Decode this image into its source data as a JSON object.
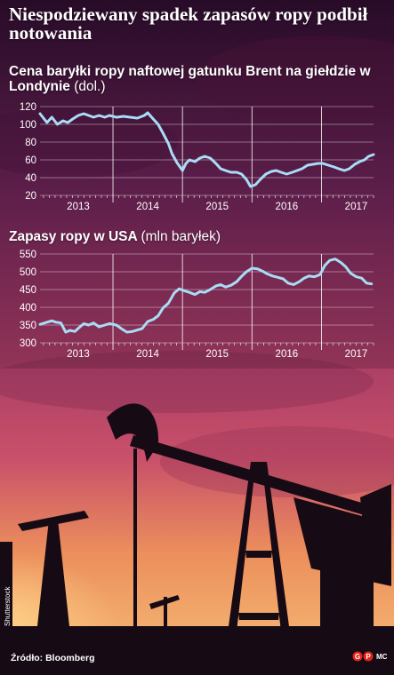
{
  "title": "Niespodziewany spadek zapasów ropy podbił notowania",
  "source": "Źródło: Bloomberg",
  "photo_credit": "Shutterstock",
  "author_initials": "MC",
  "colors": {
    "line": "#a9dcf5",
    "grid": "#ffffff",
    "sky_top": "#3b1236",
    "sky_bottom": "#f39a5a"
  },
  "chart_data": [
    {
      "type": "line",
      "title": "Cena baryłki ropy naftowej gatunku Brent na giełdzie w Londynie",
      "unit": "(dol.)",
      "x_labels": [
        "2013",
        "2014",
        "2015",
        "2016",
        "2017"
      ],
      "xlim": [
        2012.95,
        2017.75
      ],
      "ylim": [
        20,
        120
      ],
      "y_ticks": [
        120,
        100,
        80,
        60,
        40,
        20
      ],
      "grid": true,
      "series": [
        {
          "x": [
            2012.95,
            2013.05,
            2013.12,
            2013.2,
            2013.28,
            2013.35,
            2013.42,
            2013.5,
            2013.58,
            2013.65,
            2013.72,
            2013.8,
            2013.88,
            2013.95,
            2014.05,
            2014.15,
            2014.25,
            2014.35,
            2014.45,
            2014.5,
            2014.58,
            2014.65,
            2014.72,
            2014.8,
            2014.85,
            2014.92,
            2015.0,
            2015.05,
            2015.1,
            2015.18,
            2015.25,
            2015.32,
            2015.4,
            2015.48,
            2015.55,
            2015.62,
            2015.7,
            2015.78,
            2015.85,
            2015.92,
            2015.98,
            2016.05,
            2016.12,
            2016.2,
            2016.28,
            2016.35,
            2016.42,
            2016.5,
            2016.58,
            2016.65,
            2016.72,
            2016.8,
            2016.88,
            2016.95,
            2017.02,
            2017.1,
            2017.18,
            2017.25,
            2017.33,
            2017.4,
            2017.48,
            2017.55,
            2017.62,
            2017.68,
            2017.75
          ],
          "y": [
            112,
            102,
            108,
            100,
            104,
            102,
            106,
            110,
            112,
            110,
            108,
            110,
            108,
            110,
            108,
            109,
            108,
            107,
            110,
            113,
            106,
            100,
            90,
            78,
            67,
            57,
            48,
            56,
            60,
            58,
            62,
            64,
            62,
            56,
            50,
            48,
            46,
            46,
            44,
            38,
            30,
            32,
            38,
            44,
            47,
            48,
            46,
            44,
            46,
            48,
            50,
            54,
            55,
            56,
            56,
            54,
            52,
            50,
            48,
            50,
            55,
            58,
            60,
            64,
            66
          ]
        }
      ]
    },
    {
      "type": "line",
      "title": "Zapasy ropy w USA",
      "unit": "(mln baryłek)",
      "x_labels": [
        "2013",
        "2014",
        "2015",
        "2016",
        "2017"
      ],
      "xlim": [
        2012.95,
        2017.75
      ],
      "ylim": [
        300,
        550
      ],
      "y_ticks": [
        550,
        500,
        450,
        400,
        350,
        300
      ],
      "grid": true,
      "series": [
        {
          "x": [
            2012.95,
            2013.05,
            2013.12,
            2013.18,
            2013.25,
            2013.32,
            2013.38,
            2013.45,
            2013.52,
            2013.58,
            2013.65,
            2013.72,
            2013.8,
            2013.88,
            2013.95,
            2014.05,
            2014.12,
            2014.2,
            2014.28,
            2014.35,
            2014.42,
            2014.5,
            2014.58,
            2014.65,
            2014.72,
            2014.8,
            2014.88,
            2014.95,
            2015.02,
            2015.1,
            2015.18,
            2015.25,
            2015.32,
            2015.4,
            2015.48,
            2015.55,
            2015.62,
            2015.7,
            2015.78,
            2015.85,
            2015.92,
            2016.0,
            2016.08,
            2016.15,
            2016.22,
            2016.3,
            2016.38,
            2016.45,
            2016.52,
            2016.6,
            2016.68,
            2016.75,
            2016.82,
            2016.9,
            2016.98,
            2017.05,
            2017.12,
            2017.2,
            2017.28,
            2017.35,
            2017.42,
            2017.5,
            2017.58,
            2017.65,
            2017.72
          ],
          "y": [
            352,
            358,
            362,
            358,
            356,
            330,
            335,
            332,
            344,
            354,
            350,
            356,
            345,
            350,
            354,
            350,
            340,
            330,
            332,
            336,
            340,
            360,
            366,
            376,
            398,
            412,
            440,
            452,
            447,
            442,
            436,
            444,
            442,
            450,
            460,
            464,
            457,
            462,
            472,
            487,
            500,
            510,
            508,
            502,
            494,
            488,
            484,
            480,
            468,
            464,
            472,
            482,
            488,
            486,
            492,
            518,
            532,
            536,
            526,
            514,
            496,
            486,
            482,
            468,
            466
          ]
        }
      ]
    }
  ]
}
